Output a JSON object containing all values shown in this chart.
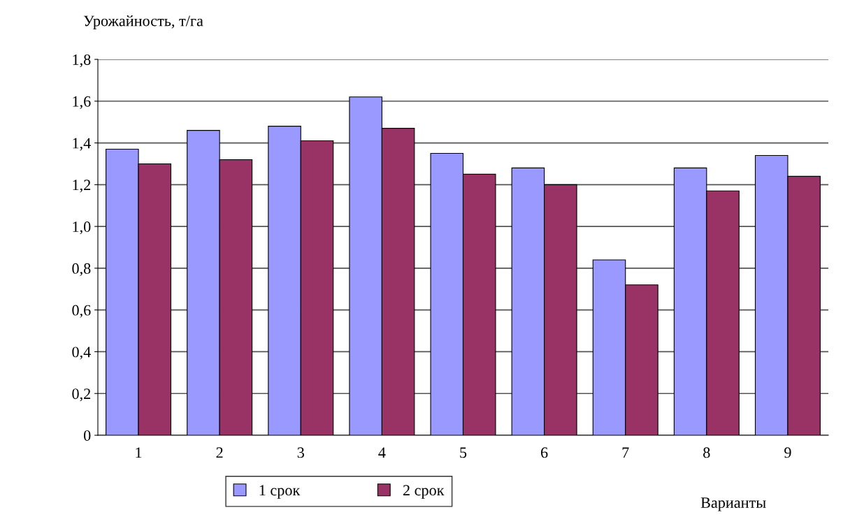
{
  "chart_data": {
    "type": "bar",
    "ylabel": "Урожайность, т/га",
    "xlabel": "Варианты",
    "categories": [
      "1",
      "2",
      "3",
      "4",
      "5",
      "6",
      "7",
      "8",
      "9"
    ],
    "series": [
      {
        "name": "1 срок",
        "color": "#9999ff",
        "values": [
          1.37,
          1.46,
          1.48,
          1.62,
          1.35,
          1.28,
          0.84,
          1.28,
          1.34
        ]
      },
      {
        "name": "2 срок",
        "color": "#993366",
        "values": [
          1.3,
          1.32,
          1.41,
          1.47,
          1.25,
          1.2,
          0.72,
          1.17,
          1.24
        ]
      }
    ],
    "ylim": [
      0,
      1.8
    ],
    "yticks": [
      0,
      {
        "value": 0.2,
        "label": "0,2"
      },
      {
        "value": 0.4,
        "label": "0,4"
      },
      {
        "value": 0.6,
        "label": "0,6"
      },
      {
        "value": 0.8,
        "label": "0,8"
      },
      {
        "value": 1.0,
        "label": "1,0"
      },
      {
        "value": 1.2,
        "label": "1,2"
      },
      {
        "value": 1.4,
        "label": "1,4"
      },
      {
        "value": 1.6,
        "label": "1,6"
      },
      {
        "value": 1.8,
        "label": "1,8"
      }
    ],
    "grid": "y",
    "legend": "bottom"
  }
}
